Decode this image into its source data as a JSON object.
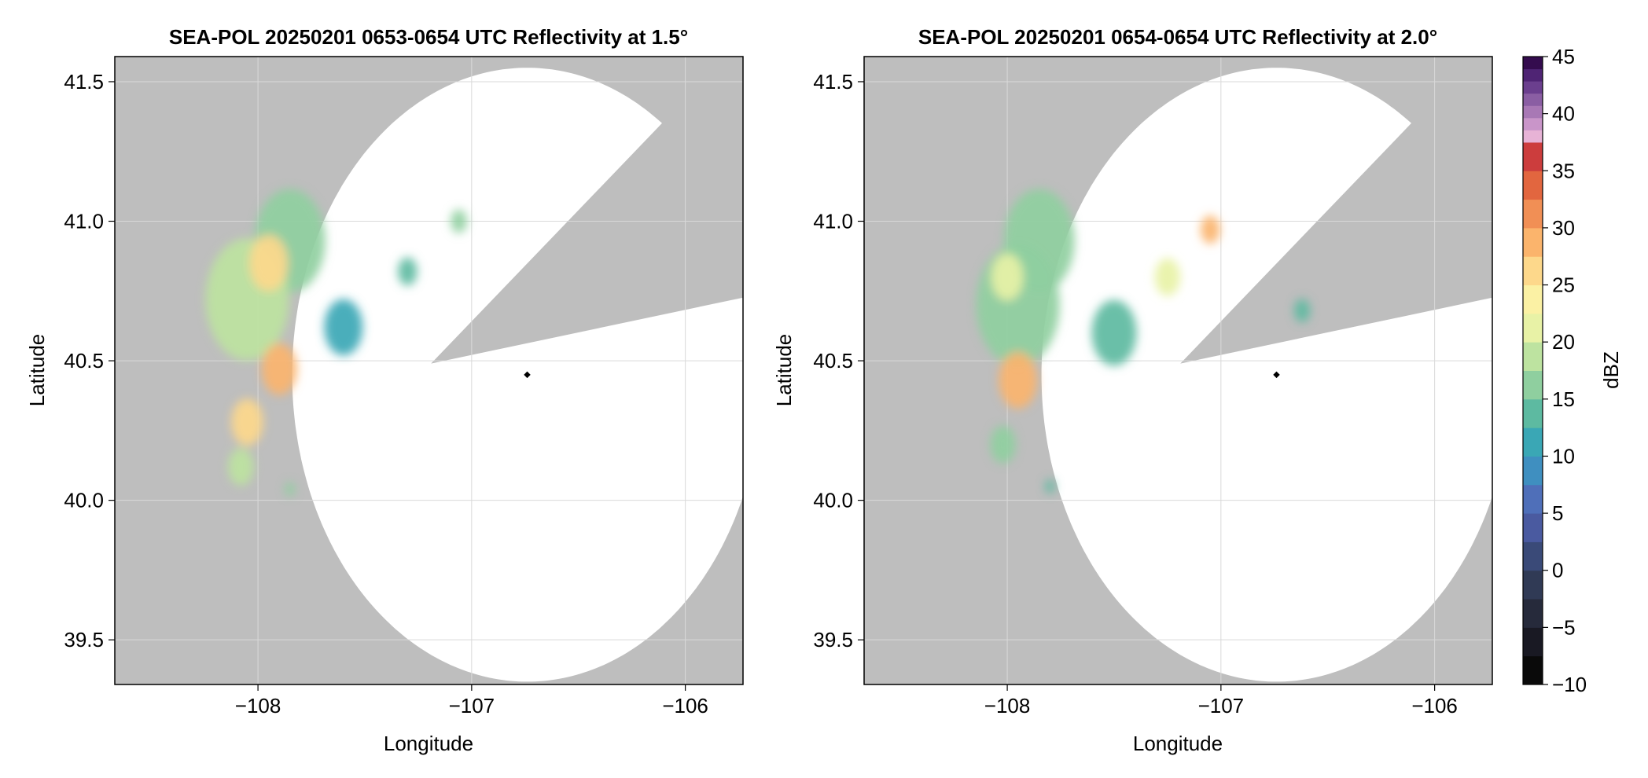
{
  "figure": {
    "colorbar": {
      "label": "dBZ",
      "range": [
        -10,
        45
      ],
      "ticks": [
        "45",
        "40",
        "35",
        "30",
        "25",
        "20",
        "15",
        "10",
        "5",
        "0",
        "−5",
        "−10"
      ],
      "tick_values": [
        45,
        40,
        35,
        30,
        25,
        20,
        15,
        10,
        5,
        0,
        -5,
        -10
      ],
      "levels": [
        -10,
        -7.5,
        -5,
        -2.5,
        0,
        2.5,
        5,
        7.5,
        10,
        12.5,
        15,
        17.5,
        20,
        22.5,
        25,
        27.5,
        30,
        32.5,
        35,
        37.5,
        40,
        42.5,
        45
      ],
      "colors": [
        "#0a0a0a",
        "#191923",
        "#262a3b",
        "#303a55",
        "#3a4a78",
        "#4a5aa0",
        "#4f6fb9",
        "#3f8fc0",
        "#3aa7b5",
        "#5dbaa1",
        "#8fcf9f",
        "#bde3a0",
        "#e8f2a6",
        "#fbf1a4",
        "#fdd88b",
        "#fbb46c",
        "#f18f55",
        "#e2663f",
        "#cc3d3d",
        "#b01f51",
        "#b3196e",
        "#d8458f",
        "#f1a0c6"
      ],
      "colors_upper": [
        "#e7b3d6",
        "#c995c9",
        "#a878b5",
        "#8a5ea3",
        "#6b3f8e",
        "#4f2474",
        "#340c4e"
      ]
    },
    "axis_labels": {
      "x": "Longitude",
      "y": "Latitude"
    },
    "x_ticks": [
      {
        "value": -108,
        "label": "−108"
      },
      {
        "value": -107,
        "label": "−107"
      },
      {
        "value": -106,
        "label": "−106"
      }
    ],
    "y_ticks": [
      {
        "value": 41.5,
        "label": "41.5"
      },
      {
        "value": 41.0,
        "label": "41.0"
      },
      {
        "value": 40.5,
        "label": "40.5"
      },
      {
        "value": 40.0,
        "label": "40.0"
      },
      {
        "value": 39.5,
        "label": "39.5"
      }
    ],
    "x_range": [
      -108.67,
      -105.73
    ],
    "y_range": [
      39.34,
      41.59
    ],
    "radar_site": {
      "lon": -106.74,
      "lat": 40.45
    },
    "range_ring_radius_deg": 1.1,
    "blocked_wedges": [
      {
        "from_deg": 15,
        "to_deg": 55
      }
    ],
    "colors": {
      "no_coverage": "#bebebe",
      "gridline": "#d9d9d9",
      "site_marker": "#000000"
    }
  },
  "panels": [
    {
      "title": "SEA-POL 20250201 0653-0654 UTC Reflectivity at 1.5°",
      "elevation_deg": 1.5,
      "echo_areas": [
        {
          "name": "western-band-north",
          "lon": -107.85,
          "lat": 40.93,
          "size_deg": 0.22,
          "dbz": 16
        },
        {
          "name": "western-band-main",
          "lon": -108.05,
          "lat": 40.72,
          "size_deg": 0.26,
          "dbz": 19
        },
        {
          "name": "core-north",
          "lon": -107.95,
          "lat": 40.85,
          "size_deg": 0.12,
          "dbz": 25
        },
        {
          "name": "core-central",
          "lon": -107.9,
          "lat": 40.47,
          "size_deg": 0.11,
          "dbz": 28
        },
        {
          "name": "core-south",
          "lon": -108.05,
          "lat": 40.28,
          "size_deg": 0.1,
          "dbz": 25
        },
        {
          "name": "southern-tail",
          "lon": -108.08,
          "lat": 40.12,
          "size_deg": 0.08,
          "dbz": 18
        },
        {
          "name": "eastern-fringe",
          "lon": -107.6,
          "lat": 40.62,
          "size_deg": 0.12,
          "dbz": 12
        },
        {
          "name": "streamer-east",
          "lon": -107.3,
          "lat": 40.82,
          "size_deg": 0.06,
          "dbz": 13
        },
        {
          "name": "cell-near-wedge",
          "lon": -107.06,
          "lat": 41.0,
          "size_deg": 0.05,
          "dbz": 15
        },
        {
          "name": "isolated-south",
          "lon": -107.85,
          "lat": 40.04,
          "size_deg": 0.03,
          "dbz": 16
        }
      ]
    },
    {
      "title": "SEA-POL 20250201 0654-0654 UTC Reflectivity at 2.0°",
      "elevation_deg": 2.0,
      "echo_areas": [
        {
          "name": "western-band-north",
          "lon": -107.85,
          "lat": 40.93,
          "size_deg": 0.22,
          "dbz": 16
        },
        {
          "name": "western-band-main",
          "lon": -107.95,
          "lat": 40.7,
          "size_deg": 0.26,
          "dbz": 17
        },
        {
          "name": "core-north",
          "lon": -108.0,
          "lat": 40.8,
          "size_deg": 0.1,
          "dbz": 22
        },
        {
          "name": "core-central",
          "lon": -107.95,
          "lat": 40.43,
          "size_deg": 0.12,
          "dbz": 28
        },
        {
          "name": "streamer-east",
          "lon": -107.25,
          "lat": 40.8,
          "size_deg": 0.08,
          "dbz": 22
        },
        {
          "name": "cell-near-wedge",
          "lon": -107.05,
          "lat": 40.97,
          "size_deg": 0.06,
          "dbz": 28
        },
        {
          "name": "eastern-fringe",
          "lon": -107.5,
          "lat": 40.6,
          "size_deg": 0.14,
          "dbz": 13
        },
        {
          "name": "cell-east",
          "lon": -106.62,
          "lat": 40.68,
          "size_deg": 0.05,
          "dbz": 13
        },
        {
          "name": "southern-tail",
          "lon": -108.02,
          "lat": 40.2,
          "size_deg": 0.08,
          "dbz": 15
        },
        {
          "name": "isolated-south",
          "lon": -107.8,
          "lat": 40.05,
          "size_deg": 0.03,
          "dbz": 14
        }
      ]
    }
  ]
}
